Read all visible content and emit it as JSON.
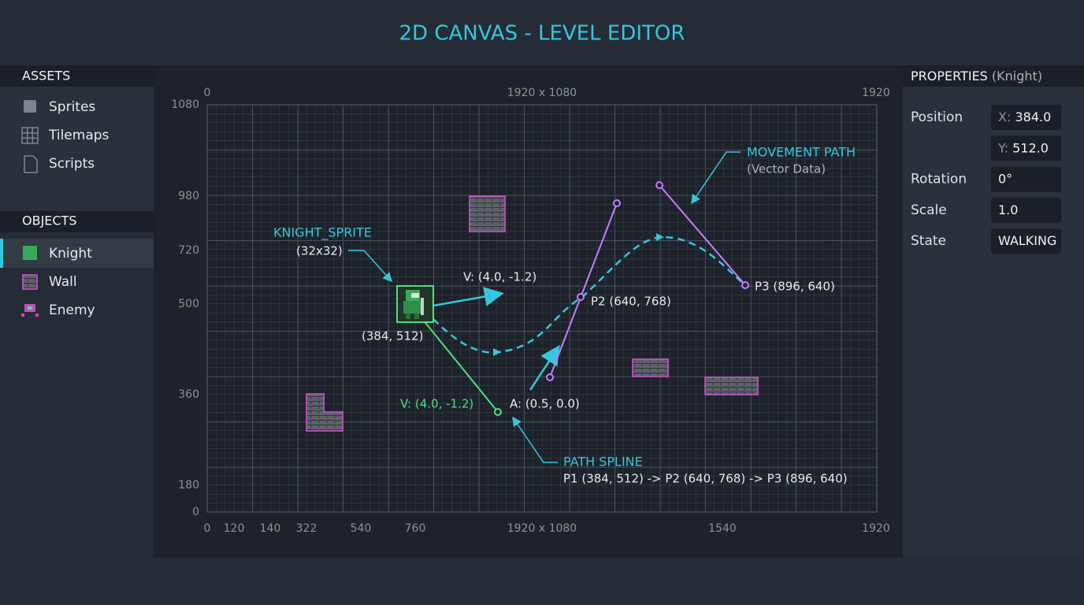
{
  "header": {
    "title": "2D CANVAS - LEVEL EDITOR"
  },
  "assets": {
    "title": "ASSETS",
    "items": [
      "Sprites",
      "Tilemaps",
      "Scripts"
    ]
  },
  "objects": {
    "title": "OBJECTS",
    "items": [
      "Knight",
      "Wall",
      "Enemy"
    ]
  },
  "canvas": {
    "top_labels": [
      "0",
      "1920 x 1080",
      "1920"
    ],
    "y_labels": [
      "1080",
      "980",
      "720",
      "500",
      "360",
      "180",
      "0"
    ],
    "x_labels": [
      "0",
      "120",
      "140",
      "322",
      "540",
      "760",
      "1920 x 1080",
      "1540",
      "1920"
    ],
    "annotations": {
      "sprite_name": "KNIGHT_SPRITE",
      "sprite_size": "(32x32)",
      "velocity_arrow": "V: (4.0, -1.2)",
      "sprite_position": "(384, 512)",
      "velocity_green": "V: (4.0, -1.2)",
      "acceleration": "A: (0.5, 0.0)",
      "p2": "P2 (640, 768)",
      "p3": "P3 (896, 640)",
      "movement_title": "MOVEMENT PATH",
      "movement_subtitle": "(Vector Data)",
      "spline_title": "PATH SPLINE",
      "spline_points": "P1 (384, 512) -> P2 (640, 768) -> P3 (896, 640)"
    }
  },
  "properties": {
    "title": "PROPERTIES",
    "subtitle": "(Knight)",
    "rows": [
      {
        "label": "Position",
        "prefix": "X:",
        "value": "384.0"
      },
      {
        "prefix": "Y:",
        "value": "512.0"
      },
      {
        "label": "Rotation",
        "value": "0°"
      },
      {
        "label": "Scale",
        "value": "1.0"
      },
      {
        "label": "State",
        "value": "WALKING"
      }
    ]
  }
}
